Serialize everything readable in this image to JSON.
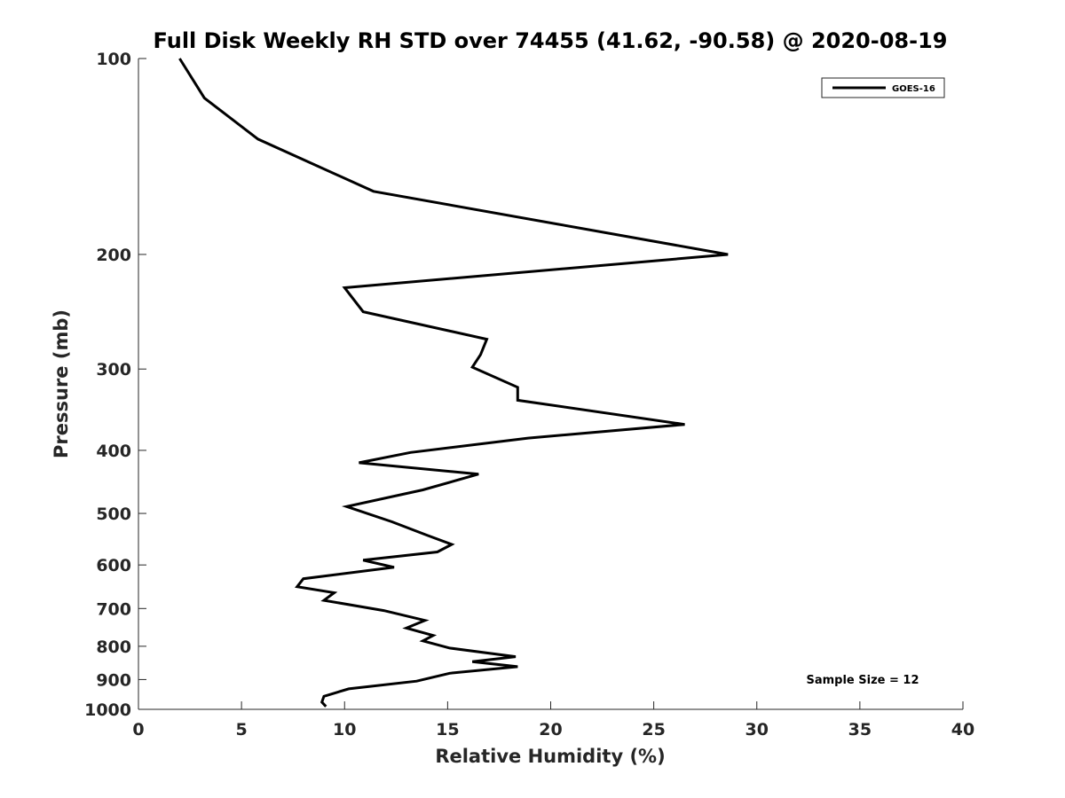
{
  "chart_data": {
    "type": "line",
    "title": "Full Disk Weekly RH STD over 74455 (41.62, -90.58) @ 2020-08-19",
    "xlabel": "Relative Humidity (%)",
    "ylabel": "Pressure (mb)",
    "xlim": [
      0,
      40
    ],
    "ylim": [
      100,
      1000
    ],
    "yscale": "log",
    "y_reversed": true,
    "xticks": [
      0,
      5,
      10,
      15,
      20,
      25,
      30,
      35,
      40
    ],
    "yticks": [
      100,
      200,
      300,
      400,
      500,
      600,
      700,
      800,
      900,
      1000
    ],
    "legend": {
      "position": "top-right",
      "entries": [
        "GOES-16"
      ]
    },
    "annotation": "Sample Size = 12",
    "series": [
      {
        "name": "GOES-16",
        "color": "#000000",
        "x": [
          2.0,
          3.2,
          5.8,
          11.4,
          28.6,
          10.0,
          10.9,
          16.9,
          16.6,
          16.2,
          18.4,
          18.4,
          26.5,
          18.9,
          13.2,
          10.7,
          16.5,
          13.8,
          10.1,
          12.3,
          14.0,
          15.2,
          14.5,
          10.9,
          12.4,
          8.0,
          7.7,
          9.5,
          9.0,
          11.9,
          13.9,
          13.0,
          14.3,
          13.8,
          15.1,
          18.3,
          16.2,
          18.4,
          15.1,
          13.5,
          10.2,
          9.0,
          8.9,
          9.1
        ],
        "y": [
          100,
          115,
          133,
          160,
          200,
          225,
          245,
          270,
          285,
          298,
          320,
          335,
          365,
          383,
          403,
          418,
          435,
          460,
          488,
          515,
          540,
          558,
          573,
          590,
          605,
          630,
          648,
          662,
          680,
          705,
          730,
          750,
          770,
          785,
          805,
          830,
          845,
          860,
          880,
          905,
          930,
          955,
          975,
          990
        ]
      }
    ]
  }
}
